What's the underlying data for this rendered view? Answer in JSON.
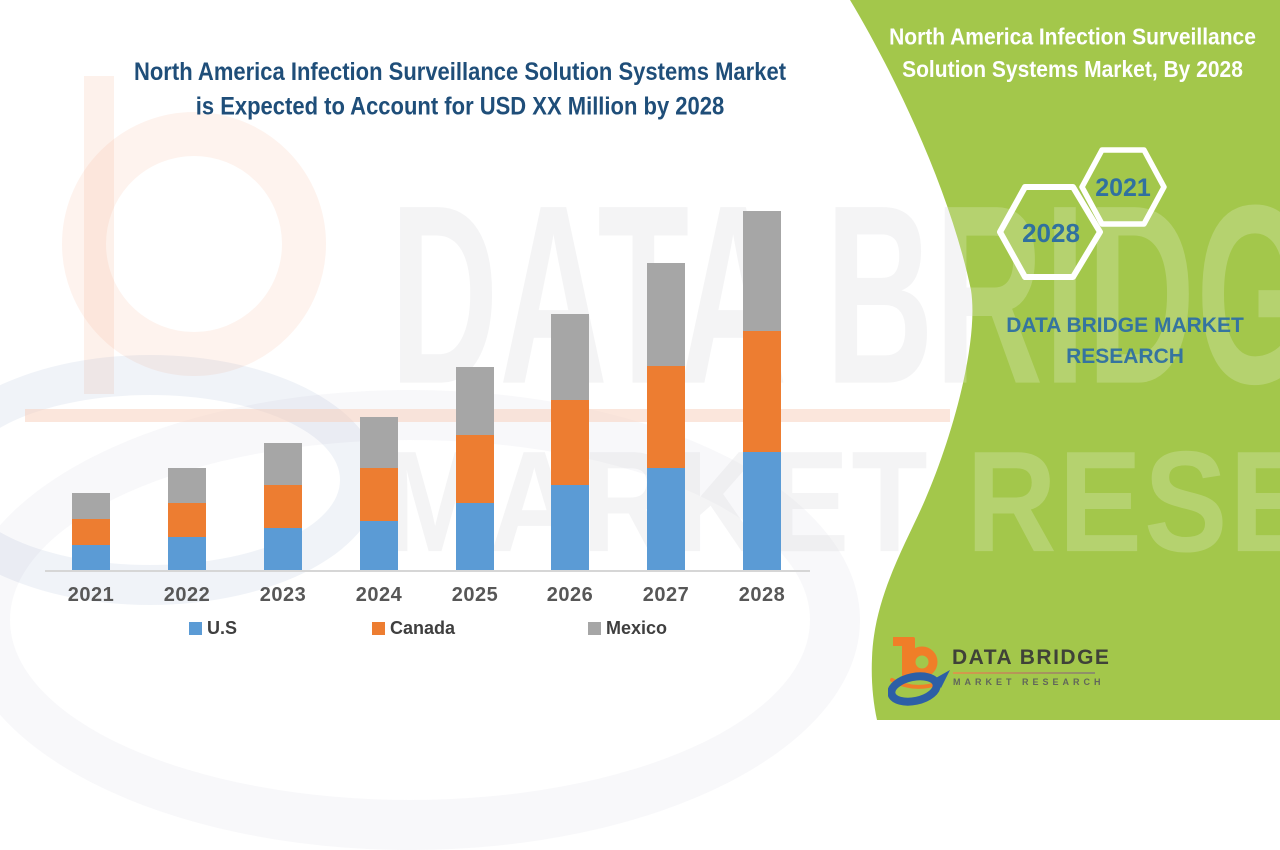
{
  "main_title": {
    "line1": "North America Infection Surveillance Solution Systems Market",
    "line2": "is Expected to Account for USD XX Million by 2028"
  },
  "side_panel": {
    "title_line1": "North America Infection Surveillance",
    "title_line2": "Solution Systems Market, By 2028",
    "hexagon_small_year": "2021",
    "hexagon_large_year": "2028",
    "brand_line1": "DATA BRIDGE MARKET",
    "brand_line2": "RESEARCH",
    "background_color": "#a3c74b",
    "title_text_color": "#ffffff",
    "year_text_color": "#30719f",
    "brand_text_color": "#35749f"
  },
  "footer_logo": {
    "brand": "DATA BRIDGE",
    "subtitle": "MARKET RESEARCH"
  },
  "watermark": {
    "line1": "DATA BRIDGE",
    "line2": "MARKET RESEARCH"
  },
  "chart_data": {
    "type": "bar",
    "stacked": true,
    "title": "North America Infection Surveillance Solution Systems Market is Expected to Account for USD XX Million by 2028",
    "categories": [
      "2021",
      "2022",
      "2023",
      "2024",
      "2025",
      "2026",
      "2027",
      "2028"
    ],
    "series": [
      {
        "name": "U.S",
        "color": "#5b9bd5",
        "values": [
          26,
          34,
          43,
          50,
          68,
          86,
          103,
          119
        ]
      },
      {
        "name": "Canada",
        "color": "#ed7d31",
        "values": [
          26,
          34,
          43,
          53,
          68,
          85,
          102,
          121
        ]
      },
      {
        "name": "Mexico",
        "color": "#a6a6a6",
        "values": [
          26,
          35,
          42,
          51,
          68,
          86,
          103,
          120
        ]
      }
    ],
    "xlabel": "",
    "ylabel": "",
    "value_axis_visible": false,
    "units_note": "No value axis shown; series values are relative estimates (actual figures masked as USD XX Million)",
    "grid": false,
    "legend_position": "bottom",
    "title_color": "#1f4e79",
    "axis_label_color": "#575757"
  }
}
